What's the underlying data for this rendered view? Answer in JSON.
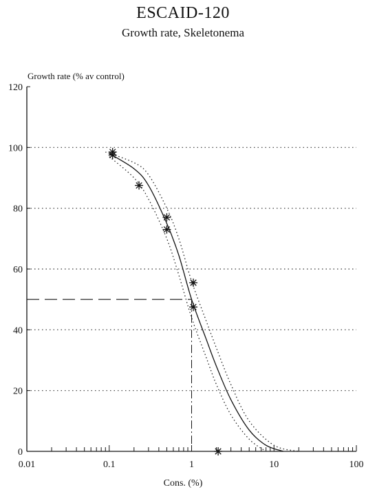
{
  "chart_data": {
    "type": "scatter",
    "title": "ESCAID-120",
    "subtitle": "Growth rate, Skeletonema",
    "ylabel": "Growth rate (% av control)",
    "xlabel": "Cons. (%)",
    "x_scale": "log",
    "xlim": [
      0.01,
      100
    ],
    "ylim": [
      0,
      120
    ],
    "x_ticks": [
      0.01,
      0.1,
      1,
      10,
      100
    ],
    "x_tick_labels": [
      "0.01",
      "0.1",
      "1",
      "10",
      "100"
    ],
    "y_ticks": [
      0,
      20,
      40,
      60,
      80,
      100,
      120
    ],
    "y_tick_labels": [
      "0",
      "20",
      "40",
      "60",
      "80",
      "100",
      "120"
    ],
    "grid": "horizontal-dotted",
    "points": [
      {
        "x": 0.11,
        "y": 98.5
      },
      {
        "x": 0.11,
        "y": 97.5
      },
      {
        "x": 0.23,
        "y": 87.5
      },
      {
        "x": 0.5,
        "y": 77.0
      },
      {
        "x": 0.5,
        "y": 73.0
      },
      {
        "x": 1.05,
        "y": 55.5
      },
      {
        "x": 1.05,
        "y": 47.5
      },
      {
        "x": 2.1,
        "y": 0.0
      }
    ],
    "fit_curve": [
      {
        "x": 0.1,
        "y": 98.0
      },
      {
        "x": 0.2,
        "y": 93.0
      },
      {
        "x": 0.3,
        "y": 87.5
      },
      {
        "x": 0.5,
        "y": 75.0
      },
      {
        "x": 0.7,
        "y": 64.5
      },
      {
        "x": 1.0,
        "y": 50.0
      },
      {
        "x": 1.5,
        "y": 37.0
      },
      {
        "x": 2.0,
        "y": 28.0
      },
      {
        "x": 3.0,
        "y": 17.0
      },
      {
        "x": 5.0,
        "y": 7.0
      },
      {
        "x": 8.0,
        "y": 2.0
      },
      {
        "x": 13.0,
        "y": 0.0
      }
    ],
    "confidence_upper": [
      {
        "x": 0.09,
        "y": 98.5
      },
      {
        "x": 0.2,
        "y": 95.0
      },
      {
        "x": 0.3,
        "y": 91.0
      },
      {
        "x": 0.5,
        "y": 80.0
      },
      {
        "x": 0.7,
        "y": 70.0
      },
      {
        "x": 1.0,
        "y": 56.0
      },
      {
        "x": 1.5,
        "y": 43.0
      },
      {
        "x": 2.0,
        "y": 34.0
      },
      {
        "x": 3.0,
        "y": 22.0
      },
      {
        "x": 5.0,
        "y": 10.0
      },
      {
        "x": 10.0,
        "y": 2.0
      },
      {
        "x": 20.0,
        "y": 0.0
      }
    ],
    "confidence_lower": [
      {
        "x": 0.1,
        "y": 97.0
      },
      {
        "x": 0.2,
        "y": 90.0
      },
      {
        "x": 0.3,
        "y": 83.0
      },
      {
        "x": 0.5,
        "y": 70.0
      },
      {
        "x": 0.7,
        "y": 58.0
      },
      {
        "x": 1.0,
        "y": 44.0
      },
      {
        "x": 1.5,
        "y": 31.0
      },
      {
        "x": 2.0,
        "y": 22.0
      },
      {
        "x": 3.0,
        "y": 12.0
      },
      {
        "x": 5.0,
        "y": 4.0
      },
      {
        "x": 8.0,
        "y": 0.0
      }
    ],
    "ec50_marker": {
      "x": 1.0,
      "y": 50
    }
  }
}
